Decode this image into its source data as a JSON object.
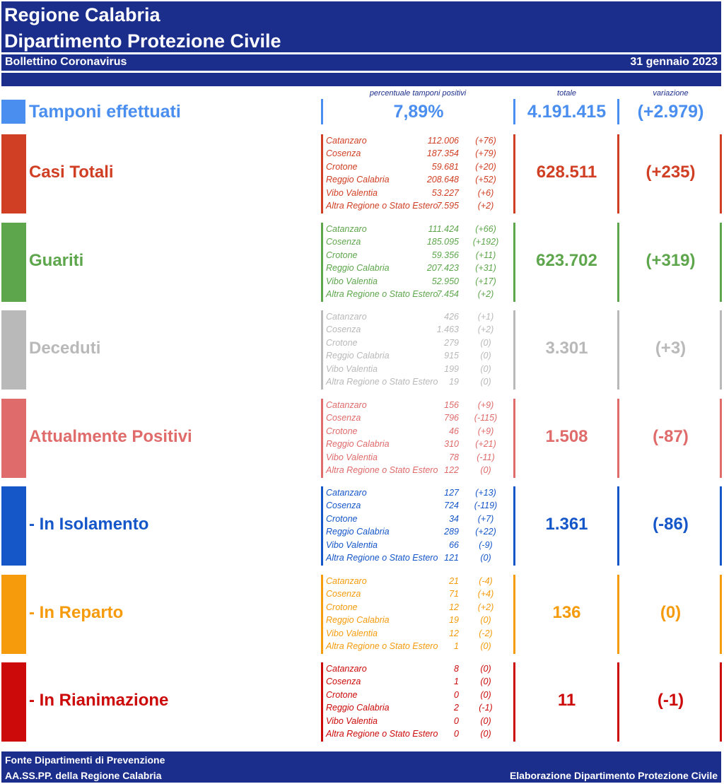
{
  "header": {
    "line1": "Regione Calabria",
    "line2": "Dipartimento Protezione Civile",
    "bulletin": "Bollettino Coronavirus",
    "date": "31 gennaio 2023"
  },
  "columns": {
    "percent": "percentuale tamponi positivi",
    "total": "totale",
    "change": "variazione"
  },
  "tamponi": {
    "label": "Tamponi effettuati",
    "percent": "7,89%",
    "total": "4.191.415",
    "change": "(+2.979)",
    "color": "#4a8ef0"
  },
  "sections": [
    {
      "title": "Casi Totali",
      "color": "#d03f24",
      "total": "628.511",
      "change": "(+235)",
      "rows": [
        {
          "name": "Catanzaro",
          "value": "112.006",
          "change": "(+76)"
        },
        {
          "name": "Cosenza",
          "value": "187.354",
          "change": "(+79)"
        },
        {
          "name": "Crotone",
          "value": "59.681",
          "change": "(+20)"
        },
        {
          "name": "Reggio Calabria",
          "value": "208.648",
          "change": "(+52)"
        },
        {
          "name": "Vibo Valentia",
          "value": "53.227",
          "change": "(+6)"
        },
        {
          "name": "Altra Regione o Stato Estero",
          "value": "7.595",
          "change": "(+2)"
        }
      ]
    },
    {
      "title": "Guariti",
      "color": "#5ea64c",
      "total": "623.702",
      "change": "(+319)",
      "rows": [
        {
          "name": "Catanzaro",
          "value": "111.424",
          "change": "(+66)"
        },
        {
          "name": "Cosenza",
          "value": "185.095",
          "change": "(+192)"
        },
        {
          "name": "Crotone",
          "value": "59.356",
          "change": "(+11)"
        },
        {
          "name": "Reggio Calabria",
          "value": "207.423",
          "change": "(+31)"
        },
        {
          "name": "Vibo Valentia",
          "value": "52.950",
          "change": "(+17)"
        },
        {
          "name": "Altra Regione o Stato Estero",
          "value": "7.454",
          "change": "(+2)"
        }
      ]
    },
    {
      "title": "Deceduti",
      "color": "#b9b9b9",
      "total": "3.301",
      "change": "(+3)",
      "rows": [
        {
          "name": "Catanzaro",
          "value": "426",
          "change": "(+1)"
        },
        {
          "name": "Cosenza",
          "value": "1.463",
          "change": "(+2)"
        },
        {
          "name": "Crotone",
          "value": "279",
          "change": "(0)"
        },
        {
          "name": "Reggio Calabria",
          "value": "915",
          "change": "(0)"
        },
        {
          "name": "Vibo Valentia",
          "value": "199",
          "change": "(0)"
        },
        {
          "name": "Altra Regione o Stato Estero",
          "value": "19",
          "change": "(0)"
        }
      ]
    },
    {
      "title": "Attualmente Positivi",
      "color": "#e06b6b",
      "total": "1.508",
      "change": "(-87)",
      "rows": [
        {
          "name": "Catanzaro",
          "value": "156",
          "change": "(+9)"
        },
        {
          "name": "Cosenza",
          "value": "796",
          "change": "(-115)"
        },
        {
          "name": "Crotone",
          "value": "46",
          "change": "(+9)"
        },
        {
          "name": "Reggio Calabria",
          "value": "310",
          "change": "(+21)"
        },
        {
          "name": "Vibo Valentia",
          "value": "78",
          "change": "(-11)"
        },
        {
          "name": "Altra Regione o Stato Estero",
          "value": "122",
          "change": "(0)"
        }
      ]
    },
    {
      "title": " - In Isolamento",
      "color": "#1556c9",
      "total": "1.361",
      "change": "(-86)",
      "rows": [
        {
          "name": "Catanzaro",
          "value": "127",
          "change": "(+13)"
        },
        {
          "name": "Cosenza",
          "value": "724",
          "change": "(-119)"
        },
        {
          "name": "Crotone",
          "value": "34",
          "change": "(+7)"
        },
        {
          "name": "Reggio Calabria",
          "value": "289",
          "change": "(+22)"
        },
        {
          "name": "Vibo Valentia",
          "value": "66",
          "change": "(-9)"
        },
        {
          "name": "Altra Regione o Stato Estero",
          "value": "121",
          "change": "(0)"
        }
      ]
    },
    {
      "title": " - In Reparto",
      "color": "#f59b0c",
      "total": "136",
      "change": "(0)",
      "rows": [
        {
          "name": "Catanzaro",
          "value": "21",
          "change": "(-4)"
        },
        {
          "name": "Cosenza",
          "value": "71",
          "change": "(+4)"
        },
        {
          "name": "Crotone",
          "value": "12",
          "change": "(+2)"
        },
        {
          "name": "Reggio Calabria",
          "value": "19",
          "change": "(0)"
        },
        {
          "name": "Vibo Valentia",
          "value": "12",
          "change": "(-2)"
        },
        {
          "name": "Altra Regione o Stato Estero",
          "value": "1",
          "change": "(0)"
        }
      ]
    },
    {
      "title": " - In Rianimazione",
      "color": "#cc0a0a",
      "total": "11",
      "change": "(-1)",
      "rows": [
        {
          "name": "Catanzaro",
          "value": "8",
          "change": "(0)"
        },
        {
          "name": "Cosenza",
          "value": "1",
          "change": "(0)"
        },
        {
          "name": "Crotone",
          "value": "0",
          "change": "(0)"
        },
        {
          "name": "Reggio Calabria",
          "value": "2",
          "change": "(-1)"
        },
        {
          "name": "Vibo Valentia",
          "value": "0",
          "change": "(0)"
        },
        {
          "name": "Altra Regione o Stato Estero",
          "value": "0",
          "change": "(0)"
        }
      ]
    }
  ],
  "footer": {
    "line1": "Fonte Dipartimenti di Prevenzione",
    "line2": "AA.SS.PP.  della Regione Calabria",
    "credit": "Elaborazione Dipartimento Protezione Civile"
  }
}
